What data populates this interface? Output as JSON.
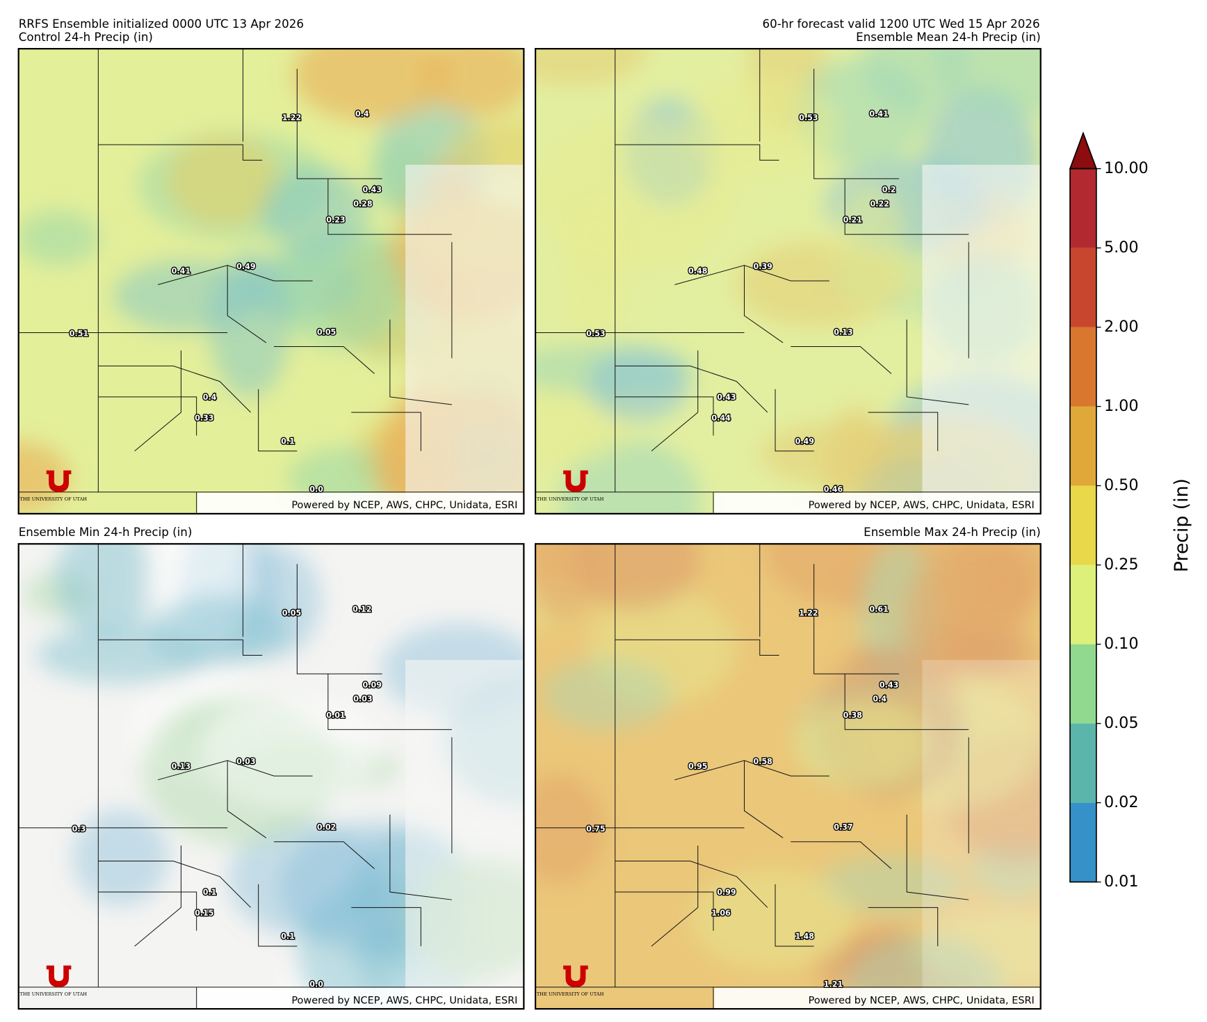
{
  "header": {
    "left": "RRFS Ensemble initialized 0000 UTC 13 Apr 2026",
    "right": "60-hr forecast valid 1200 UTC Wed 15 Apr 2026"
  },
  "credit": "Powered by NCEP, AWS, CHPC, Unidata, ESRI",
  "logo_text": "THE UNIVERSITY OF UTAH",
  "panels": [
    {
      "title": "Control 24-h Precip (in)",
      "labels": [
        "1.22",
        "0.4",
        "0.43",
        "0.28",
        "0.23",
        "0.41",
        "0.49",
        "0.51",
        "0.05",
        "0.4",
        "0.33",
        "0.1",
        "0.0"
      ]
    },
    {
      "title": "Ensemble Mean 24-h Precip (in)",
      "labels": [
        "0.53",
        "0.41",
        "0.2",
        "0.22",
        "0.21",
        "0.48",
        "0.39",
        "0.53",
        "0.13",
        "0.43",
        "0.44",
        "0.49",
        "0.46"
      ]
    },
    {
      "title": "Ensemble Min 24-h Precip (in)",
      "labels": [
        "0.05",
        "0.12",
        "0.09",
        "0.03",
        "0.01",
        "0.13",
        "0.03",
        "0.3",
        "0.02",
        "0.1",
        "0.15",
        "0.1",
        "0.0"
      ]
    },
    {
      "title": "Ensemble Max 24-h Precip (in)",
      "labels": [
        "1.22",
        "0.61",
        "0.43",
        "0.4",
        "0.38",
        "0.95",
        "0.58",
        "0.75",
        "0.37",
        "0.99",
        "1.06",
        "1.48",
        "1.21"
      ]
    }
  ],
  "colorbar": {
    "label": "Precip (in)",
    "ticks": [
      {
        "value": 0.01,
        "label": "0.01"
      },
      {
        "value": 0.02,
        "label": "0.02"
      },
      {
        "value": 0.05,
        "label": "0.05"
      },
      {
        "value": 0.1,
        "label": "0.10"
      },
      {
        "value": 0.25,
        "label": "0.25"
      },
      {
        "value": 0.5,
        "label": "0.50"
      },
      {
        "value": 1,
        "label": "1.00"
      },
      {
        "value": 2,
        "label": "2.00"
      },
      {
        "value": 5,
        "label": "5.00"
      },
      {
        "value": 10,
        "label": "10.00"
      }
    ],
    "colors": [
      "#3591c7",
      "#5bb5ab",
      "#90d98f",
      "#dcf07a",
      "#e8d84a",
      "#e0a838",
      "#d9772f",
      "#c9462e",
      "#b22a2f"
    ],
    "extend_color": "#8b0d10"
  }
}
